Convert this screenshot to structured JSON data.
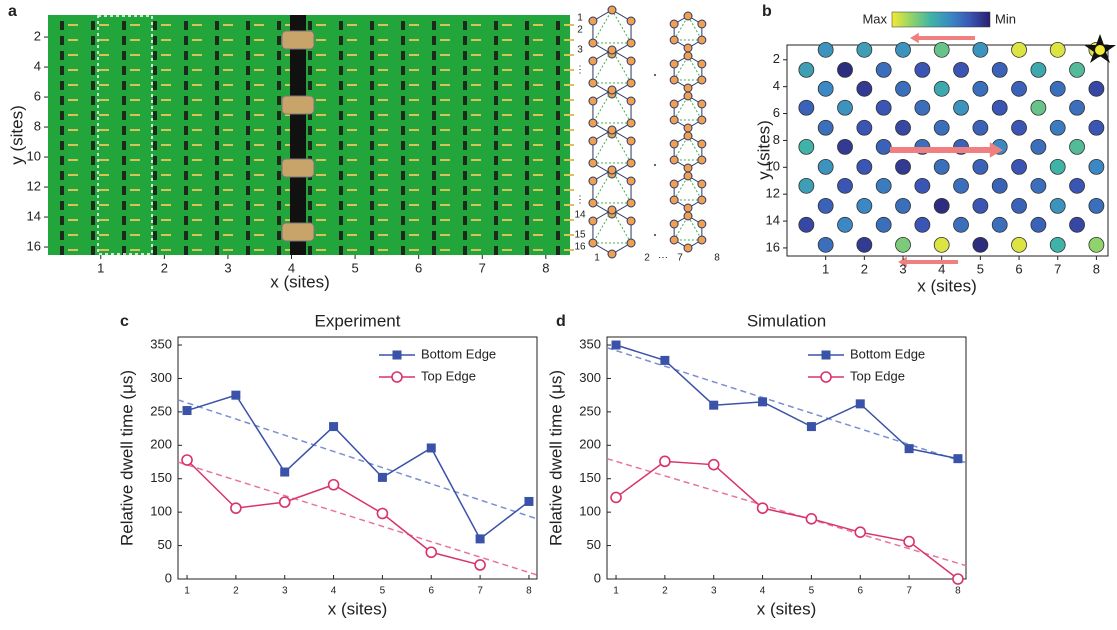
{
  "panel_a": {
    "panel_label": "a",
    "x_label": "x (sites)",
    "y_label": "y (sites)",
    "xlim": [
      0.17,
      8.38
    ],
    "ylim": [
      0.53,
      16.53
    ],
    "xticks": [
      1,
      2,
      3,
      4,
      5,
      6,
      7,
      8
    ],
    "yticks": [
      2,
      4,
      6,
      8,
      10,
      12,
      14,
      16
    ],
    "lattice_row_labels": [
      "1",
      "2",
      "3",
      "⋮",
      "⋮",
      "14",
      "15",
      "16"
    ],
    "lattice_column_labels": [
      "1",
      "2",
      "⋯",
      "7",
      "8"
    ]
  },
  "panel_b": {
    "panel_label": "b",
    "x_label": "x (sites)",
    "y_label": "y (sites)",
    "max_label": "Max",
    "min_label": "Min",
    "colors": [
      "#f4e934",
      "#8fd36a",
      "#3fb3a8",
      "#3b88c4",
      "#3a55b4",
      "#29206e"
    ],
    "xlim": [
      0,
      8.3
    ],
    "ylim": [
      0.9,
      16.6
    ],
    "xticks": [
      1,
      2,
      3,
      4,
      5,
      6,
      7,
      8
    ],
    "yticks": [
      2,
      4,
      6,
      8,
      10,
      12,
      14,
      16
    ],
    "row_y": [
      1.26,
      2.75,
      4.16,
      5.57,
      7.06,
      8.48,
      9.97,
      11.38,
      12.87,
      14.28,
      15.77
    ],
    "x_even": [
      1,
      2,
      3,
      4,
      5,
      6,
      7,
      8
    ],
    "x_odd": [
      0.5,
      1.5,
      2.5,
      3.5,
      4.5,
      5.5,
      6.5,
      7.5
    ],
    "values": [
      [
        0.45,
        0.5,
        0.45,
        0.7,
        0.45,
        0.95,
        0.95,
        0.95
      ],
      [
        0.5,
        0.05,
        0.3,
        0.2,
        0.2,
        0.25,
        0.55,
        0.65
      ],
      [
        0.4,
        0.1,
        0.3,
        0.55,
        0.3,
        0.25,
        0.3,
        0.15
      ],
      [
        0.25,
        0.45,
        0.2,
        0.3,
        0.45,
        0.2,
        0.7,
        0.3
      ],
      [
        0.3,
        0.2,
        0.15,
        0.3,
        0.25,
        0.2,
        0.35,
        0.2
      ],
      [
        0.6,
        0.1,
        0.25,
        0.3,
        0.25,
        0.4,
        0.3,
        0.65
      ],
      [
        0.45,
        0.2,
        0.1,
        0.3,
        0.25,
        0.2,
        0.6,
        0.4
      ],
      [
        0.5,
        0.2,
        0.35,
        0.2,
        0.3,
        0.25,
        0.3,
        0.2
      ],
      [
        0.25,
        0.4,
        0.3,
        0.05,
        0.2,
        0.25,
        0.45,
        0.3
      ],
      [
        0.15,
        0.4,
        0.3,
        0.2,
        0.3,
        0.3,
        0.25,
        0.15
      ],
      [
        0.3,
        0.1,
        0.75,
        0.95,
        0.05,
        0.95,
        0.6,
        0.8
      ]
    ]
  },
  "chart_data": [
    {
      "type": "line",
      "panel_label": "c",
      "title": "Experiment",
      "x_label": "x (sites)",
      "y_label": "Relative dwell time (μs)",
      "xlim": [
        0.815,
        8.165
      ],
      "ylim": [
        0,
        362
      ],
      "xticks": [
        1,
        2,
        3,
        4,
        5,
        6,
        7,
        8
      ],
      "yticks": [
        0,
        50,
        100,
        150,
        200,
        250,
        300,
        350
      ],
      "series": [
        {
          "name": "Bottom Edge",
          "color": "#3a52a8",
          "marker": "square",
          "x": [
            1,
            2,
            3,
            4,
            5,
            6,
            7,
            8
          ],
          "values": [
            252,
            275,
            160,
            228,
            152,
            196,
            60,
            116
          ]
        },
        {
          "name": "Top Edge",
          "color": "#d9336f",
          "marker": "circle",
          "x": [
            1,
            2,
            3,
            4,
            5,
            6,
            7
          ],
          "values": [
            178,
            106,
            115,
            141,
            98,
            40,
            21
          ]
        }
      ],
      "fits": [
        {
          "color": "#7b8fd0",
          "x": [
            0.815,
            8.165
          ],
          "values": [
            268,
            90
          ]
        },
        {
          "color": "#e7759f",
          "x": [
            0.815,
            8.165
          ],
          "values": [
            175,
            6
          ]
        }
      ]
    },
    {
      "type": "line",
      "panel_label": "d",
      "title": "Simulation",
      "x_label": "x (sites)",
      "y_label": "Relative dwell time (μs)",
      "xlim": [
        0.815,
        8.165
      ],
      "ylim": [
        0,
        362
      ],
      "xticks": [
        1,
        2,
        3,
        4,
        5,
        6,
        7,
        8
      ],
      "yticks": [
        0,
        50,
        100,
        150,
        200,
        250,
        300,
        350
      ],
      "series": [
        {
          "name": "Bottom Edge",
          "color": "#3a52a8",
          "marker": "square",
          "x": [
            1,
            2,
            3,
            4,
            5,
            6,
            7,
            8
          ],
          "values": [
            350,
            327,
            260,
            265,
            228,
            262,
            195,
            180
          ]
        },
        {
          "name": "Top Edge",
          "color": "#d9336f",
          "marker": "circle",
          "x": [
            1,
            2,
            3,
            4,
            5,
            6,
            7,
            8
          ],
          "values": [
            122,
            176,
            171,
            106,
            90,
            70,
            56,
            0
          ]
        }
      ],
      "fits": [
        {
          "color": "#7b8fd0",
          "x": [
            0.815,
            8.165
          ],
          "values": [
            346,
            174
          ]
        },
        {
          "color": "#e7759f",
          "x": [
            0.815,
            8.165
          ],
          "values": [
            180,
            20
          ]
        }
      ]
    }
  ]
}
